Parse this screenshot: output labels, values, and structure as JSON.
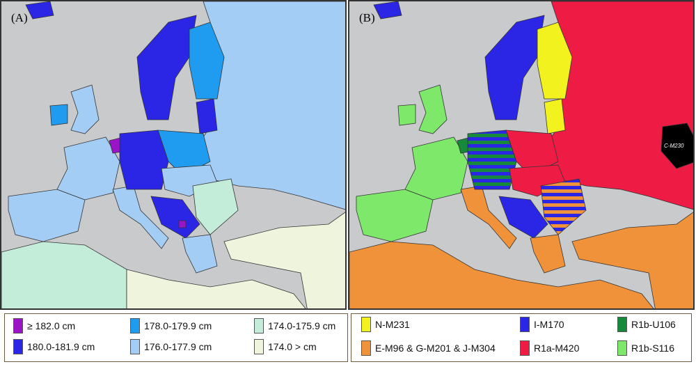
{
  "panel_a": {
    "label": "(A)",
    "legend": [
      {
        "label": "≥ 182.0 cm",
        "color": "#9b14c8"
      },
      {
        "label": "180.0-181.9 cm",
        "color": "#2b26e6"
      },
      {
        "label": "178.0-179.9 cm",
        "color": "#1f9bf0"
      },
      {
        "label": "176.0-177.9 cm",
        "color": "#a3cdf5"
      },
      {
        "label": "174.0-175.9 cm",
        "color": "#c3ecd9"
      },
      {
        "label": "174.0 > cm",
        "color": "#eef5dc"
      }
    ]
  },
  "panel_b": {
    "label": "(B)",
    "map_tag": "C-M230",
    "legend": [
      {
        "label": "N-M231",
        "color": "#f2f21e"
      },
      {
        "label": "E-M96 & G-M201 & J-M304",
        "color": "#f0923a"
      },
      {
        "label": "I-M170",
        "color": "#2b26e6"
      },
      {
        "label": "R1a-M420",
        "color": "#ee1c45"
      },
      {
        "label": "R1b-U106",
        "color": "#168a3a"
      },
      {
        "label": "R1b-S116",
        "color": "#7de86a"
      }
    ]
  }
}
